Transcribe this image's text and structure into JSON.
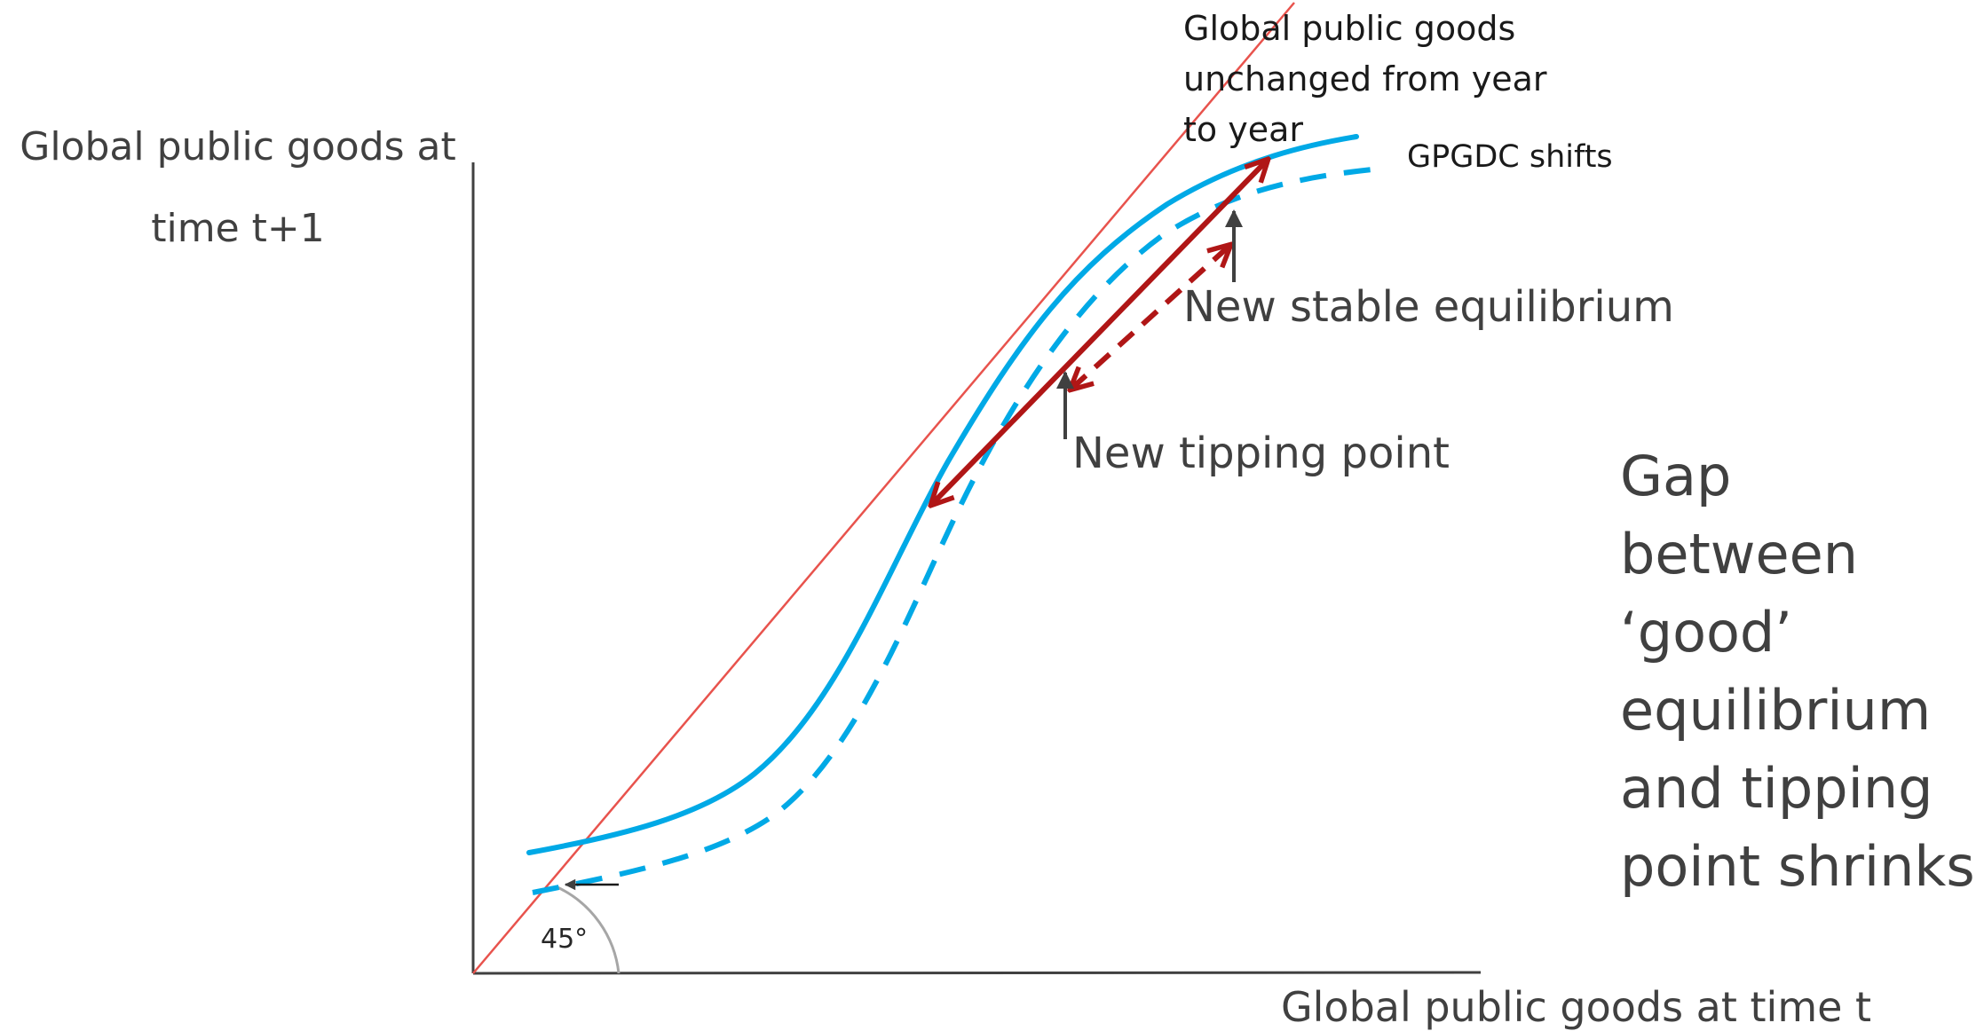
{
  "labels": {
    "y_axis": "Global public goods at time t+1",
    "x_axis": "Global public goods at time t",
    "unchanged_line": "Global public goods unchanged from year to year",
    "curve_shift": "GPGDC shifts",
    "new_stable": "New stable equilibrium",
    "new_tipping": "New tipping point",
    "gap_lines": [
      "Gap between",
      "‘good’",
      "equilibrium",
      "and tipping",
      "point shrinks"
    ],
    "angle": "45°"
  },
  "colors": {
    "axis": "#404040",
    "diagonal": "#e8534d",
    "curve": "#00a9e6",
    "arrow_red": "#b01616",
    "pointer": "#404040",
    "angle_arc": "#a6a6a6"
  }
}
